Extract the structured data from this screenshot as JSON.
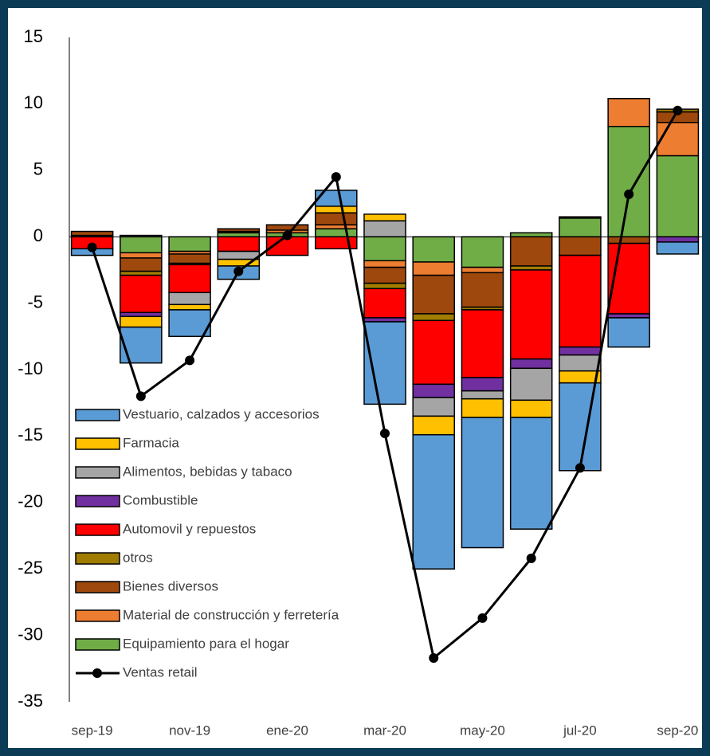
{
  "chart_data": {
    "type": "bar",
    "stacked": true,
    "categories": [
      "sep-19",
      null,
      "nov-19",
      null,
      "ene-20",
      null,
      "mar-20",
      null,
      "may-20",
      null,
      "jul-20",
      null,
      "sep-20"
    ],
    "ylim": [
      -35,
      15
    ],
    "yticks": [
      15,
      10,
      5,
      0,
      -5,
      -10,
      -15,
      -20,
      -25,
      -30,
      -35
    ],
    "grid": false,
    "legend": "lower left",
    "series": [
      {
        "name": "Vestuario, calzados y accesorios",
        "color": "#5b9bd5",
        "values": [
          -0.5,
          -2.7,
          -2.0,
          -1.0,
          0,
          1.2,
          -6.2,
          -10.1,
          -9.8,
          -8.4,
          -6.6,
          -2.2,
          -0.9
        ]
      },
      {
        "name": "Farmacia",
        "color": "#ffc000",
        "values": [
          0,
          -0.8,
          -0.4,
          -0.5,
          0,
          0.5,
          0.5,
          -1.4,
          -1.4,
          -1.3,
          -0.9,
          0,
          0
        ]
      },
      {
        "name": "Alimentos, bebidas y tabaco",
        "color": "#a5a5a5",
        "values": [
          0,
          0.1,
          -0.9,
          -0.6,
          0,
          0,
          1.2,
          -1.4,
          -0.6,
          -2.4,
          -1.2,
          0,
          0
        ]
      },
      {
        "name": "Combustible",
        "color": "#7030a0",
        "values": [
          0,
          -0.3,
          0,
          0,
          0,
          0,
          -0.3,
          -1.0,
          -1.0,
          -0.7,
          -0.6,
          -0.3,
          -0.4
        ]
      },
      {
        "name": "Automovil y repuestos",
        "color": "#ff0000",
        "values": [
          -0.9,
          -2.8,
          -2.1,
          -1.1,
          -1.4,
          -0.9,
          -2.2,
          -4.8,
          -5.1,
          -6.7,
          -6.9,
          -5.3,
          0
        ]
      },
      {
        "name": "otros",
        "color": "#a07c00",
        "values": [
          0,
          -0.3,
          -0.1,
          0,
          0,
          0,
          -0.4,
          -0.5,
          -0.2,
          -0.3,
          0.1,
          0,
          0.2
        ]
      },
      {
        "name": "Bienes diversos",
        "color": "#9e480e",
        "values": [
          0.3,
          -1.0,
          -0.7,
          0.2,
          0.4,
          0.9,
          -1.2,
          -2.9,
          -2.6,
          -2.2,
          -1.4,
          -0.5,
          0.8
        ]
      },
      {
        "name": "Material de construcción y ferretería",
        "color": "#ed7d31",
        "values": [
          0.1,
          -0.4,
          -0.2,
          0.1,
          0.2,
          0.3,
          -0.5,
          -1.0,
          -0.4,
          0,
          0,
          2.1,
          2.5
        ]
      },
      {
        "name": "Equipamiento para el hogar",
        "color": "#70ad47",
        "values": [
          0,
          -1.2,
          -1.1,
          0.3,
          0.3,
          0.6,
          -1.8,
          -1.9,
          -2.3,
          0.3,
          1.4,
          8.3,
          6.1
        ]
      },
      {
        "name": "Ventas retail",
        "type": "line",
        "color": "#000000",
        "values": [
          -0.8,
          -12.0,
          -9.3,
          -2.6,
          0.1,
          4.5,
          -14.8,
          -31.7,
          -28.7,
          -24.2,
          -17.4,
          3.2,
          9.5
        ]
      }
    ]
  }
}
